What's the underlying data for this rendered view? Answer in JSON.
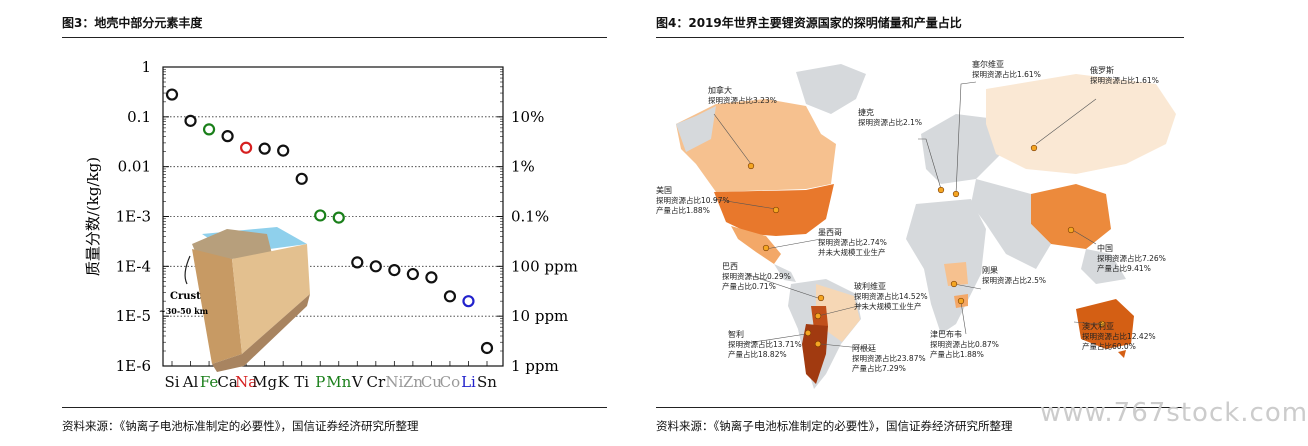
{
  "left": {
    "title": "图3：地壳中部分元素丰度",
    "source": "资料来源：《钠离子电池标准制定的必要性》，国信证券经济研究所整理"
  },
  "right": {
    "title": "图4：2019年世界主要锂资源国家的探明储量和产量占比",
    "source": "资料来源：《钠离子电池标准制定的必要性》，国信证券经济研究所整理",
    "watermark": "www.767stock.com",
    "countries": [
      {
        "key": "canada",
        "name": "加拿大",
        "lines": [
          "探明资源占比3.23%"
        ]
      },
      {
        "key": "serbia",
        "name": "塞尔维亚",
        "lines": [
          "探明资源占比1.61%"
        ]
      },
      {
        "key": "russia",
        "name": "俄罗斯",
        "lines": [
          "探明资源占比1.61%"
        ]
      },
      {
        "key": "czech",
        "name": "捷克",
        "lines": [
          "探明资源占比2.1%"
        ]
      },
      {
        "key": "usa",
        "name": "美国",
        "lines": [
          "探明资源占比10.97%",
          "产量占比1.88%"
        ]
      },
      {
        "key": "mexico",
        "name": "墨西哥",
        "lines": [
          "探明资源占比2.74%",
          "并未大规模工业生产"
        ]
      },
      {
        "key": "china",
        "name": "中国",
        "lines": [
          "探明资源占比7.26%",
          "产量占比9.41%"
        ]
      },
      {
        "key": "brazil",
        "name": "巴西",
        "lines": [
          "探明资源占比0.29%",
          "产量占比0.71%"
        ]
      },
      {
        "key": "congo",
        "name": "刚果",
        "lines": [
          "探明资源占比2.5%"
        ]
      },
      {
        "key": "bolivia",
        "name": "玻利维亚",
        "lines": [
          "探明资源占比14.52%",
          "并未大规模工业生产"
        ]
      },
      {
        "key": "australia",
        "name": "澳大利亚",
        "lines": [
          "探明资源占比12.42%",
          "产量占比60.0%"
        ]
      },
      {
        "key": "chile",
        "name": "智利",
        "lines": [
          "探明资源占比13.71%",
          "产量占比18.82%"
        ]
      },
      {
        "key": "zimbabwe",
        "name": "津巴布韦",
        "lines": [
          "探明资源占比0.87%",
          "产量占比1.88%"
        ]
      },
      {
        "key": "argentina",
        "name": "阿根廷",
        "lines": [
          "探明资源占比23.87%",
          "产量占比7.29%"
        ]
      }
    ]
  },
  "chart_data": {
    "type": "scatter",
    "title": "",
    "ylabel": "质量分数/(kg/kg)",
    "xlabel": "",
    "yscale": "log",
    "ylim": [
      1e-06,
      1
    ],
    "yticks_left": [
      "1",
      "0.1",
      "0.01",
      "1E-3",
      "1E-4",
      "1E-5",
      "1E-6"
    ],
    "yticks_right": [
      "10%",
      "1%",
      "0.1%",
      "100 ppm",
      "10 ppm",
      "1 ppm"
    ],
    "grid": "dotted horizontal",
    "inset_label": [
      "Crust",
      "~30-50 km"
    ],
    "categories": [
      "Si",
      "Al",
      "Fe",
      "Ca",
      "Na",
      "Mg",
      "K",
      "Ti",
      "P",
      "Mn",
      "V",
      "Cr",
      "Ni",
      "Zn",
      "Cu",
      "Co",
      "Li",
      "Sn"
    ],
    "values": [
      0.28,
      0.083,
      0.056,
      0.041,
      0.024,
      0.023,
      0.021,
      0.0057,
      0.00105,
      0.00095,
      0.00012,
      0.0001,
      8.4e-05,
      7e-05,
      6e-05,
      2.5e-05,
      2e-05,
      2.3e-06
    ],
    "label_colors": [
      "#111",
      "#111",
      "#1a7f1a",
      "#111",
      "#d62020",
      "#111",
      "#111",
      "#111",
      "#1a7f1a",
      "#1a7f1a",
      "#111",
      "#111",
      "#999",
      "#999",
      "#999",
      "#999",
      "#2222cc",
      "#111"
    ],
    "marker_colors": [
      "#111",
      "#111",
      "#1a7f1a",
      "#111",
      "#d62020",
      "#111",
      "#111",
      "#111",
      "#1a7f1a",
      "#1a7f1a",
      "#111",
      "#111",
      "#111",
      "#111",
      "#111",
      "#111",
      "#2222cc",
      "#111"
    ]
  }
}
